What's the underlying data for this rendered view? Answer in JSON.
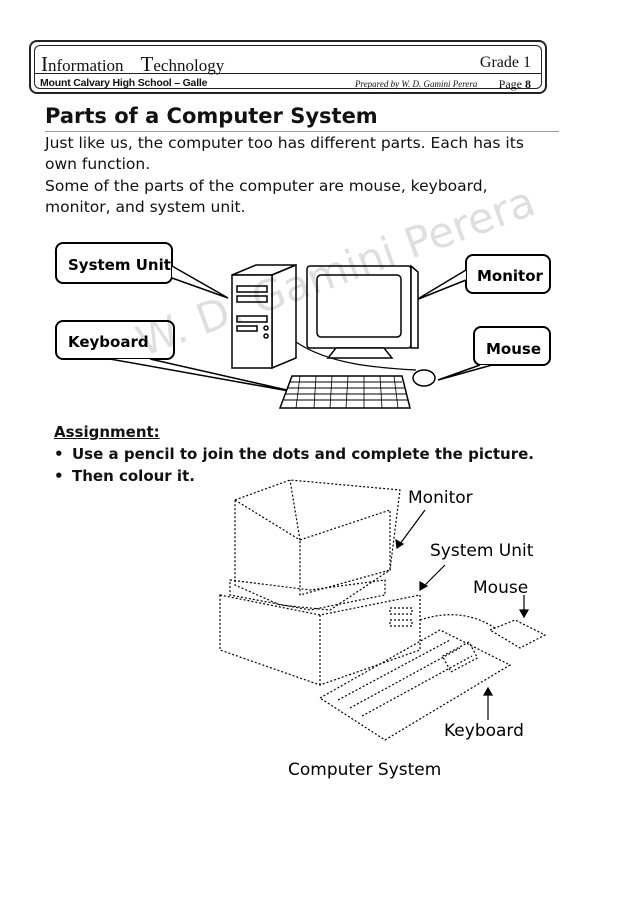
{
  "header": {
    "subject_first_1": "I",
    "subject_first_2": "nformation",
    "subject_second_1": "T",
    "subject_second_2": "echnology",
    "grade": "Grade 1",
    "school": "Mount Calvary High School – Galle",
    "prepared_by": "Prepared by W. D. Gamini Perera",
    "page_label": "Page",
    "page_number": "8"
  },
  "title": "Parts of a Computer System",
  "paragraph_1_line_1": "Just like us, the computer too has different parts. Each has its",
  "paragraph_1_line_2": "own function.",
  "paragraph_2_line_1": "Some of the parts of the computer are mouse, keyboard,",
  "paragraph_2_line_2": "monitor, and system unit.",
  "diagram_labels": {
    "system_unit": "System Unit",
    "monitor": "Monitor",
    "keyboard": "Keyboard",
    "mouse": "Mouse"
  },
  "assignment": {
    "heading": "Assignment:",
    "items": [
      "Use a pencil to join the dots and complete the picture.",
      "Then colour it."
    ]
  },
  "dotted_labels": {
    "monitor": "Monitor",
    "system_unit": "System Unit",
    "mouse": "Mouse",
    "keyboard": "Keyboard",
    "caption": "Computer System"
  },
  "watermark": "W. D. Gamini Perera"
}
